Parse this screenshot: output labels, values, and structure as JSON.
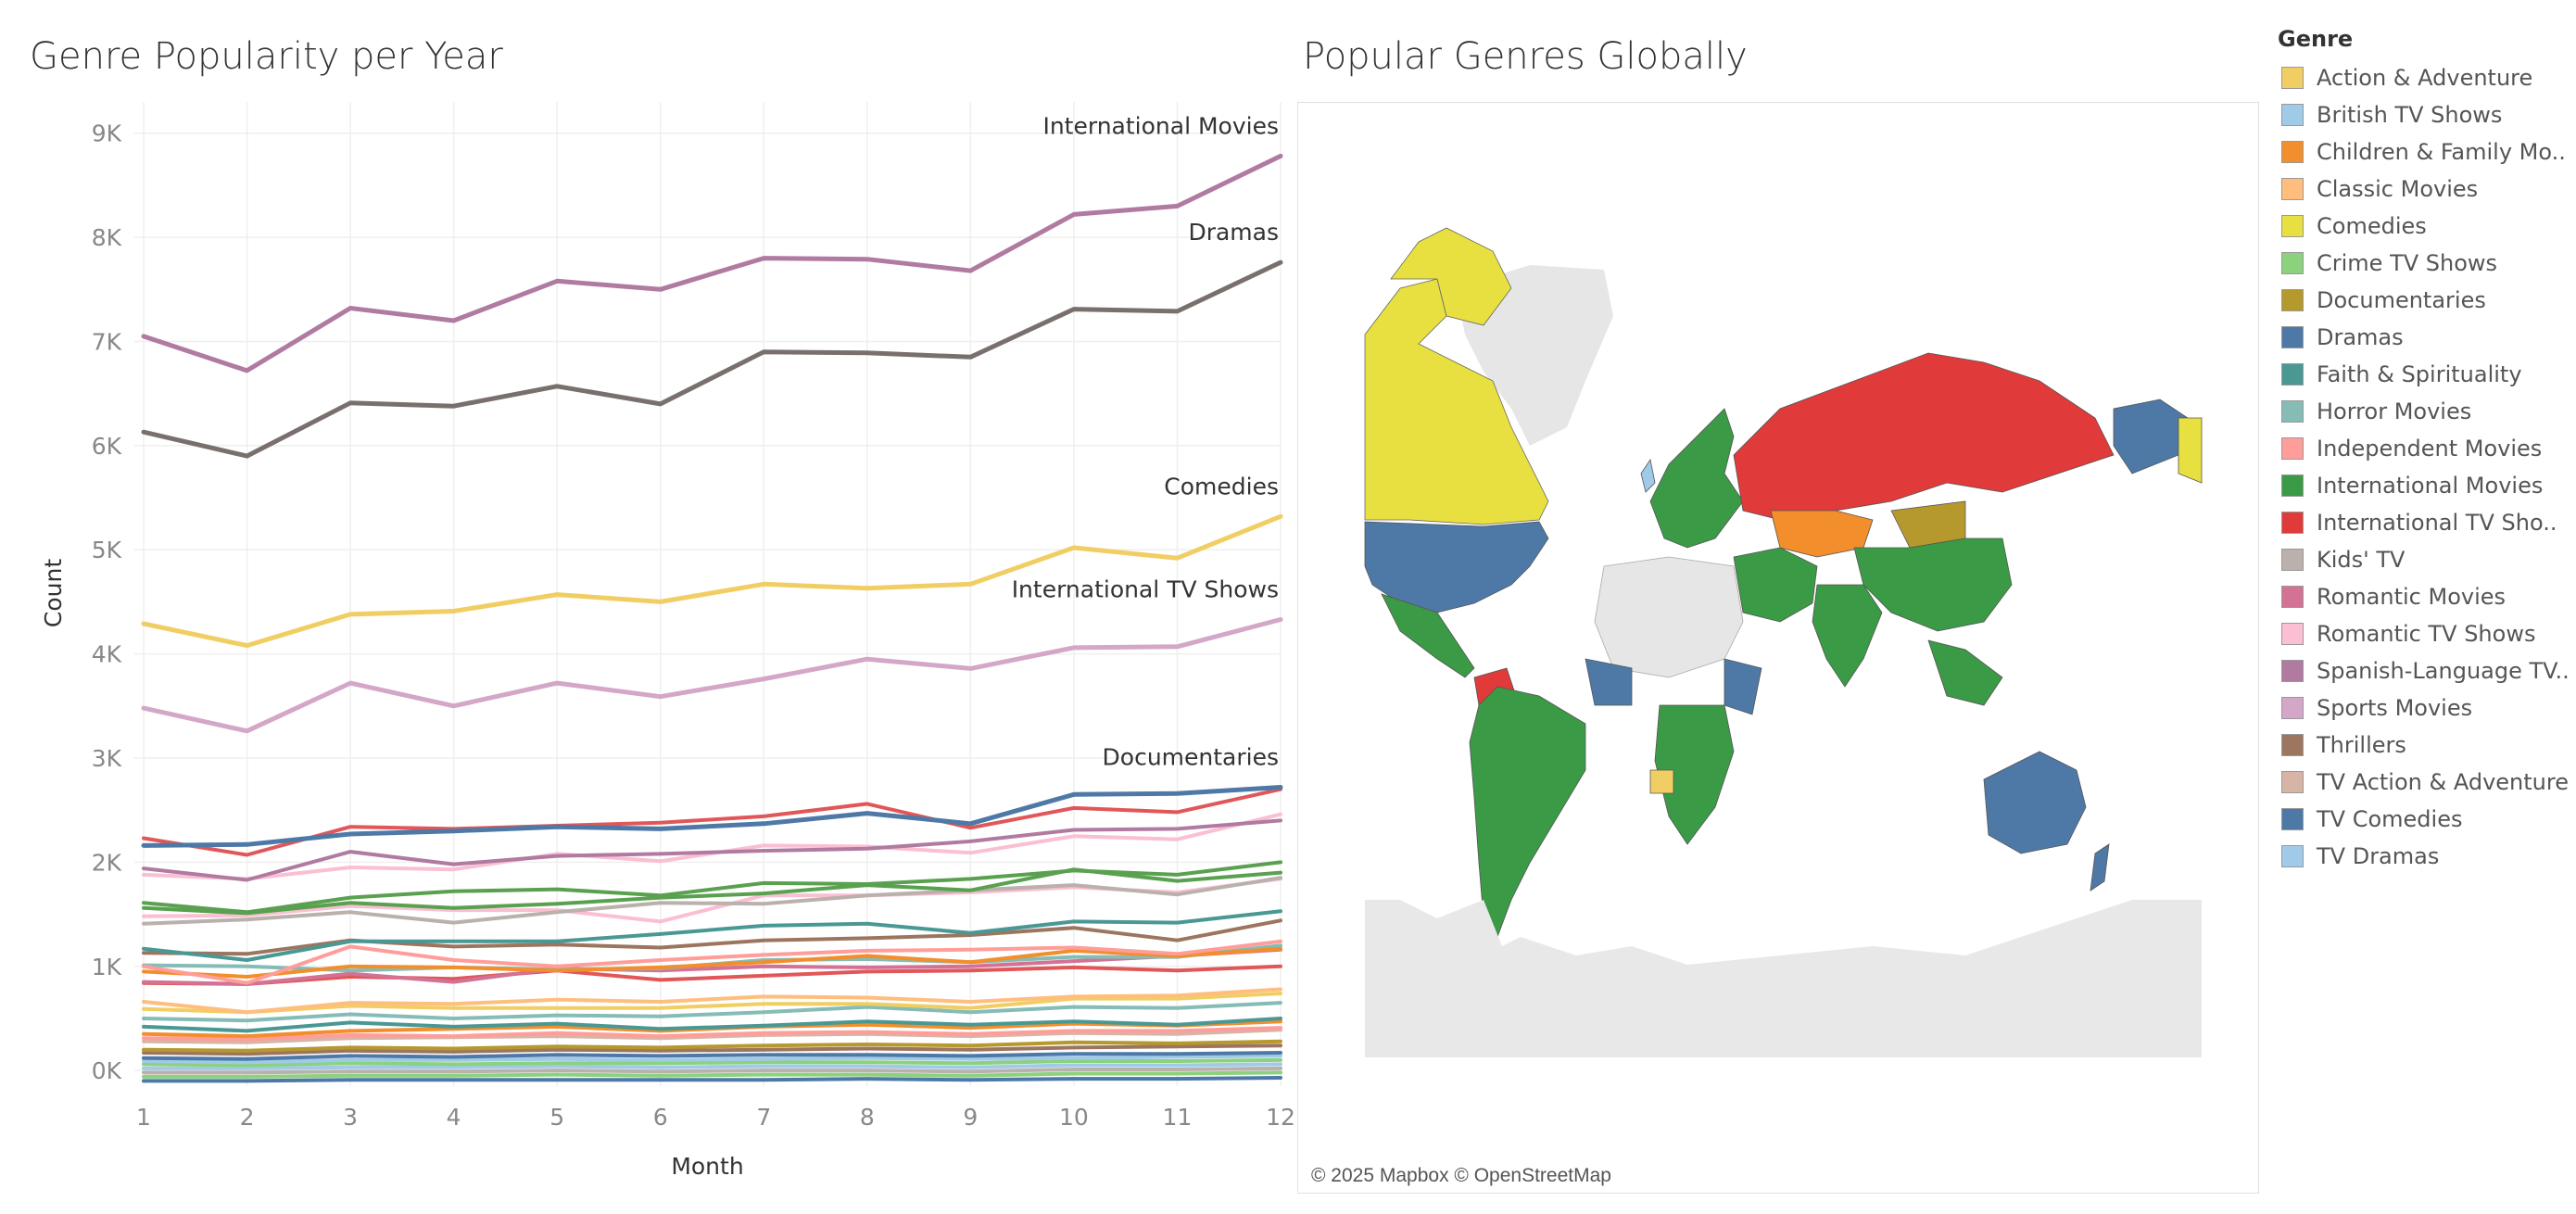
{
  "chart_data": [
    {
      "type": "line",
      "title": "Genre Popularity per Year",
      "xlabel": "Month",
      "ylabel": "Count",
      "x": [
        1,
        2,
        3,
        4,
        5,
        6,
        7,
        8,
        9,
        10,
        11,
        12
      ],
      "x_ticks": [
        "1",
        "2",
        "3",
        "4",
        "5",
        "6",
        "7",
        "8",
        "9",
        "10",
        "11",
        "12"
      ],
      "ylim": [
        -150,
        9300
      ],
      "y_ticks": [
        0,
        1000,
        2000,
        3000,
        4000,
        5000,
        6000,
        7000,
        8000,
        9000
      ],
      "y_tick_labels": [
        "0K",
        "1K",
        "2K",
        "3K",
        "4K",
        "5K",
        "6K",
        "7K",
        "8K",
        "9K"
      ],
      "grid": true,
      "series": [
        {
          "name": "International Movies",
          "color": "#b07aa1",
          "label": "International Movies",
          "values": [
            7050,
            6720,
            7320,
            7200,
            7580,
            7500,
            7800,
            7790,
            7680,
            8220,
            8300,
            8780
          ]
        },
        {
          "name": "Dramas",
          "color": "#79706e",
          "label": "Dramas",
          "values": [
            6130,
            5900,
            6410,
            6380,
            6570,
            6400,
            6900,
            6890,
            6850,
            7310,
            7290,
            7760
          ]
        },
        {
          "name": "Comedies",
          "color": "#f1ce63",
          "label": "Comedies",
          "values": [
            4290,
            4080,
            4380,
            4410,
            4570,
            4500,
            4670,
            4630,
            4670,
            5020,
            4920,
            5320
          ]
        },
        {
          "name": "International TV Shows",
          "color": "#d4a6c8",
          "label": "International TV Shows",
          "values": [
            3480,
            3260,
            3720,
            3500,
            3720,
            3590,
            3760,
            3950,
            3860,
            4060,
            4070,
            4330
          ]
        },
        {
          "name": "Documentaries",
          "color": "#4e79a7",
          "label": "Documentaries",
          "values": [
            2160,
            2170,
            2270,
            2300,
            2340,
            2320,
            2370,
            2470,
            2370,
            2650,
            2660,
            2720
          ]
        },
        {
          "name": "",
          "color": "#e15759",
          "label": "",
          "values": [
            2230,
            2070,
            2340,
            2320,
            2350,
            2380,
            2440,
            2560,
            2330,
            2520,
            2480,
            2700
          ]
        },
        {
          "name": "",
          "color": "#b07aa1",
          "label": "",
          "values": [
            1940,
            1830,
            2100,
            1980,
            2060,
            2080,
            2110,
            2130,
            2200,
            2310,
            2320,
            2400
          ]
        },
        {
          "name": "",
          "color": "#fabfd2",
          "label": "",
          "values": [
            1880,
            1840,
            1950,
            1930,
            2080,
            2010,
            2160,
            2150,
            2090,
            2250,
            2220,
            2460
          ]
        },
        {
          "name": "",
          "color": "#59a14f",
          "label": "",
          "values": [
            1610,
            1520,
            1660,
            1720,
            1740,
            1680,
            1800,
            1790,
            1840,
            1920,
            1880,
            2000
          ]
        },
        {
          "name": "",
          "color": "#59a14f",
          "label": "",
          "values": [
            1560,
            1510,
            1610,
            1560,
            1600,
            1660,
            1700,
            1780,
            1730,
            1930,
            1820,
            1900
          ]
        },
        {
          "name": "",
          "color": "#bab0ac",
          "label": "",
          "values": [
            1410,
            1450,
            1520,
            1420,
            1520,
            1610,
            1600,
            1680,
            1730,
            1780,
            1690,
            1850
          ]
        },
        {
          "name": "",
          "color": "#fabfd2",
          "label": "",
          "values": [
            1480,
            1490,
            1580,
            1540,
            1540,
            1430,
            1680,
            1680,
            1710,
            1760,
            1710,
            1840
          ]
        },
        {
          "name": "",
          "color": "#499894",
          "label": "",
          "values": [
            1170,
            1060,
            1240,
            1240,
            1240,
            1310,
            1390,
            1410,
            1320,
            1430,
            1420,
            1530
          ]
        },
        {
          "name": "",
          "color": "#9c755f",
          "label": "",
          "values": [
            1130,
            1120,
            1250,
            1190,
            1210,
            1180,
            1250,
            1270,
            1300,
            1370,
            1250,
            1440
          ]
        },
        {
          "name": "",
          "color": "#ff9d9a",
          "label": "",
          "values": [
            1000,
            840,
            1190,
            1060,
            1000,
            1060,
            1110,
            1150,
            1160,
            1180,
            1120,
            1240
          ]
        },
        {
          "name": "",
          "color": "#f28e2b",
          "label": "",
          "values": [
            950,
            900,
            1000,
            990,
            960,
            990,
            1040,
            1100,
            1040,
            1150,
            1100,
            1170
          ]
        },
        {
          "name": "",
          "color": "#86bcb6",
          "label": "",
          "values": [
            1010,
            1000,
            960,
            990,
            970,
            980,
            1060,
            1070,
            1040,
            1090,
            1090,
            1200
          ]
        },
        {
          "name": "",
          "color": "#d37295",
          "label": "",
          "values": [
            850,
            830,
            930,
            850,
            980,
            960,
            1000,
            990,
            1000,
            1050,
            1100,
            1160
          ]
        },
        {
          "name": "",
          "color": "#e15759",
          "label": "",
          "values": [
            840,
            830,
            900,
            880,
            960,
            870,
            910,
            950,
            960,
            990,
            960,
            1000
          ]
        },
        {
          "name": "",
          "color": "#ffbe7d",
          "label": "",
          "values": [
            660,
            560,
            650,
            640,
            680,
            660,
            710,
            700,
            660,
            710,
            720,
            780
          ]
        },
        {
          "name": "",
          "color": "#f1ce63",
          "label": "",
          "values": [
            590,
            560,
            620,
            600,
            600,
            600,
            640,
            640,
            600,
            690,
            690,
            740
          ]
        },
        {
          "name": "",
          "color": "#86bcb6",
          "label": "",
          "values": [
            500,
            480,
            540,
            500,
            530,
            520,
            560,
            610,
            560,
            610,
            600,
            650
          ]
        },
        {
          "name": "",
          "color": "#499894",
          "label": "",
          "values": [
            420,
            380,
            460,
            420,
            450,
            400,
            430,
            470,
            440,
            470,
            440,
            500
          ]
        },
        {
          "name": "",
          "color": "#f28e2b",
          "label": "",
          "values": [
            350,
            330,
            380,
            400,
            420,
            380,
            420,
            440,
            410,
            450,
            430,
            470
          ]
        },
        {
          "name": "",
          "color": "#ff9d9a",
          "label": "",
          "values": [
            310,
            300,
            340,
            330,
            360,
            330,
            360,
            370,
            350,
            380,
            380,
            410
          ]
        },
        {
          "name": "",
          "color": "#d7b5a6",
          "label": "",
          "values": [
            280,
            270,
            310,
            320,
            330,
            310,
            340,
            350,
            330,
            360,
            350,
            390
          ]
        },
        {
          "name": "",
          "color": "#b6992d",
          "label": "",
          "values": [
            200,
            190,
            220,
            210,
            230,
            220,
            240,
            250,
            240,
            270,
            260,
            280
          ]
        },
        {
          "name": "",
          "color": "#9c755f",
          "label": "",
          "values": [
            170,
            160,
            190,
            180,
            200,
            190,
            200,
            210,
            200,
            220,
            230,
            240
          ]
        },
        {
          "name": "",
          "color": "#4e79a7",
          "label": "",
          "values": [
            120,
            110,
            140,
            130,
            150,
            140,
            150,
            150,
            140,
            160,
            160,
            170
          ]
        },
        {
          "name": "",
          "color": "#a0cbe8",
          "label": "",
          "values": [
            90,
            80,
            100,
            100,
            110,
            100,
            110,
            120,
            110,
            120,
            130,
            140
          ]
        },
        {
          "name": "",
          "color": "#8cd17d",
          "label": "",
          "values": [
            60,
            50,
            70,
            60,
            70,
            70,
            80,
            80,
            70,
            90,
            90,
            100
          ]
        },
        {
          "name": "",
          "color": "#a0cbe8",
          "label": "",
          "values": [
            20,
            20,
            30,
            30,
            40,
            30,
            40,
            40,
            30,
            50,
            50,
            60
          ]
        },
        {
          "name": "",
          "color": "#bab0ac",
          "label": "",
          "values": [
            -20,
            -20,
            -10,
            -10,
            0,
            -10,
            0,
            0,
            -10,
            10,
            10,
            20
          ]
        },
        {
          "name": "",
          "color": "#8cd17d",
          "label": "",
          "values": [
            -60,
            -60,
            -50,
            -50,
            -40,
            -50,
            -40,
            -40,
            -50,
            -30,
            -30,
            -20
          ]
        },
        {
          "name": "",
          "color": "#4e79a7",
          "label": "",
          "values": [
            -100,
            -100,
            -90,
            -90,
            -90,
            -90,
            -90,
            -80,
            -90,
            -80,
            -80,
            -70
          ]
        }
      ]
    },
    {
      "type": "map",
      "title": "Popular Genres Globally",
      "credit": "© 2025 Mapbox © OpenStreetMap",
      "regions": [
        {
          "region": "Canada",
          "genre": "Comedies",
          "color": "#e8e040"
        },
        {
          "region": "United States",
          "genre": "Dramas",
          "color": "#4e79a7"
        },
        {
          "region": "Mexico",
          "genre": "International Movies",
          "color": "#3a9a45"
        },
        {
          "region": "South America",
          "genre": "International Movies",
          "color": "#3a9a45"
        },
        {
          "region": "Colombia",
          "genre": "International TV Shows",
          "color": "#e03a3a"
        },
        {
          "region": "Russia",
          "genre": "International TV Shows",
          "color": "#e03a3a"
        },
        {
          "region": "Kazakhstan",
          "genre": "Children & Family Movies",
          "color": "#f28e2b"
        },
        {
          "region": "Mongolia",
          "genre": "Documentaries",
          "color": "#b6992d"
        },
        {
          "region": "China",
          "genre": "International Movies",
          "color": "#3a9a45"
        },
        {
          "region": "India",
          "genre": "International Movies",
          "color": "#3a9a45"
        },
        {
          "region": "Europe",
          "genre": "International Movies",
          "color": "#3a9a45"
        },
        {
          "region": "Alaska",
          "genre": "Dramas",
          "color": "#4e79a7"
        },
        {
          "region": "Australia",
          "genre": "Dramas",
          "color": "#4e79a7"
        },
        {
          "region": "Southern Africa",
          "genre": "International Movies",
          "color": "#3a9a45"
        }
      ]
    }
  ],
  "legend": {
    "title": "Genre",
    "items": [
      {
        "label": "Action & Adventure",
        "color": "#f1ce63"
      },
      {
        "label": "British TV Shows",
        "color": "#a0cbe8"
      },
      {
        "label": "Children & Family Mo..",
        "color": "#f28e2b"
      },
      {
        "label": "Classic Movies",
        "color": "#ffbe7d"
      },
      {
        "label": "Comedies",
        "color": "#e8e040"
      },
      {
        "label": "Crime TV Shows",
        "color": "#8cd17d"
      },
      {
        "label": "Documentaries",
        "color": "#b6992d"
      },
      {
        "label": "Dramas",
        "color": "#4e79a7"
      },
      {
        "label": "Faith & Spirituality",
        "color": "#499894"
      },
      {
        "label": "Horror Movies",
        "color": "#86bcb6"
      },
      {
        "label": "Independent Movies",
        "color": "#ff9d9a"
      },
      {
        "label": "International Movies",
        "color": "#3a9a45"
      },
      {
        "label": "International TV Sho..",
        "color": "#e03a3a"
      },
      {
        "label": "Kids' TV",
        "color": "#bab0ac"
      },
      {
        "label": "Romantic Movies",
        "color": "#d37295"
      },
      {
        "label": "Romantic TV Shows",
        "color": "#fabfd2"
      },
      {
        "label": "Spanish-Language TV..",
        "color": "#b07aa1"
      },
      {
        "label": "Sports Movies",
        "color": "#d4a6c8"
      },
      {
        "label": "Thrillers",
        "color": "#9d7660"
      },
      {
        "label": "TV Action & Adventure",
        "color": "#d7b5a6"
      },
      {
        "label": "TV Comedies",
        "color": "#4e79a7"
      },
      {
        "label": "TV Dramas",
        "color": "#a0cbe8"
      }
    ]
  }
}
